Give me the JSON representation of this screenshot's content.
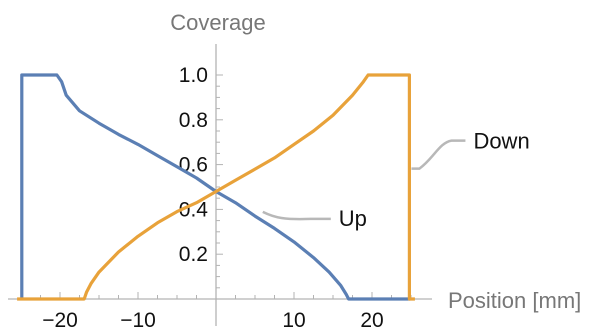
{
  "chart_data": {
    "type": "line",
    "ylabel": "Coverage",
    "xlabel": "Position [mm]",
    "xlim": [
      -25,
      25
    ],
    "ylim": [
      0,
      1
    ],
    "x_ticks": [
      -20,
      -10,
      10,
      20
    ],
    "x_tick_labels": [
      "−20",
      "−10",
      "10",
      "20"
    ],
    "y_ticks": [
      0.2,
      0.4,
      0.6,
      0.8,
      1.0
    ],
    "y_tick_labels": [
      "0.2",
      "0.4",
      "0.6",
      "0.8",
      "1.0"
    ],
    "grid": false,
    "series": [
      {
        "name": "Up",
        "color": "#5b7fb4",
        "points": [
          [
            -24.9,
            0
          ],
          [
            -24.9,
            1.0
          ],
          [
            -20.4,
            1.0
          ],
          [
            -19.8,
            0.97
          ],
          [
            -19.2,
            0.91
          ],
          [
            -17.5,
            0.84
          ],
          [
            -15,
            0.785
          ],
          [
            -12.5,
            0.735
          ],
          [
            -10,
            0.69
          ],
          [
            -7.5,
            0.64
          ],
          [
            -5,
            0.59
          ],
          [
            -2.5,
            0.54
          ],
          [
            0,
            0.48
          ],
          [
            2.5,
            0.43
          ],
          [
            5,
            0.37
          ],
          [
            7.5,
            0.315
          ],
          [
            10,
            0.255
          ],
          [
            12.5,
            0.185
          ],
          [
            14.5,
            0.12
          ],
          [
            16,
            0.06
          ],
          [
            16.7,
            0.02
          ],
          [
            17.0,
            0
          ],
          [
            24.9,
            0
          ]
        ]
      },
      {
        "name": "Down",
        "color": "#e8a23a",
        "points": [
          [
            -25.5,
            0
          ],
          [
            -16.9,
            0
          ],
          [
            -16.6,
            0.03
          ],
          [
            -16,
            0.07
          ],
          [
            -15,
            0.12
          ],
          [
            -12.5,
            0.21
          ],
          [
            -10,
            0.28
          ],
          [
            -7.5,
            0.34
          ],
          [
            -5,
            0.39
          ],
          [
            -2.5,
            0.43
          ],
          [
            0,
            0.48
          ],
          [
            2.5,
            0.53
          ],
          [
            5,
            0.58
          ],
          [
            7.5,
            0.63
          ],
          [
            10,
            0.69
          ],
          [
            12.5,
            0.75
          ],
          [
            15,
            0.82
          ],
          [
            17.5,
            0.91
          ],
          [
            18.9,
            0.97
          ],
          [
            19.5,
            1.0
          ],
          [
            24.8,
            1.0
          ],
          [
            24.8,
            0
          ],
          [
            25.5,
            0
          ]
        ]
      }
    ],
    "callouts": [
      {
        "label": "Up",
        "x": 6,
        "y": 0.38
      },
      {
        "label": "Down",
        "x": 24.8,
        "y": 0.6
      }
    ]
  }
}
